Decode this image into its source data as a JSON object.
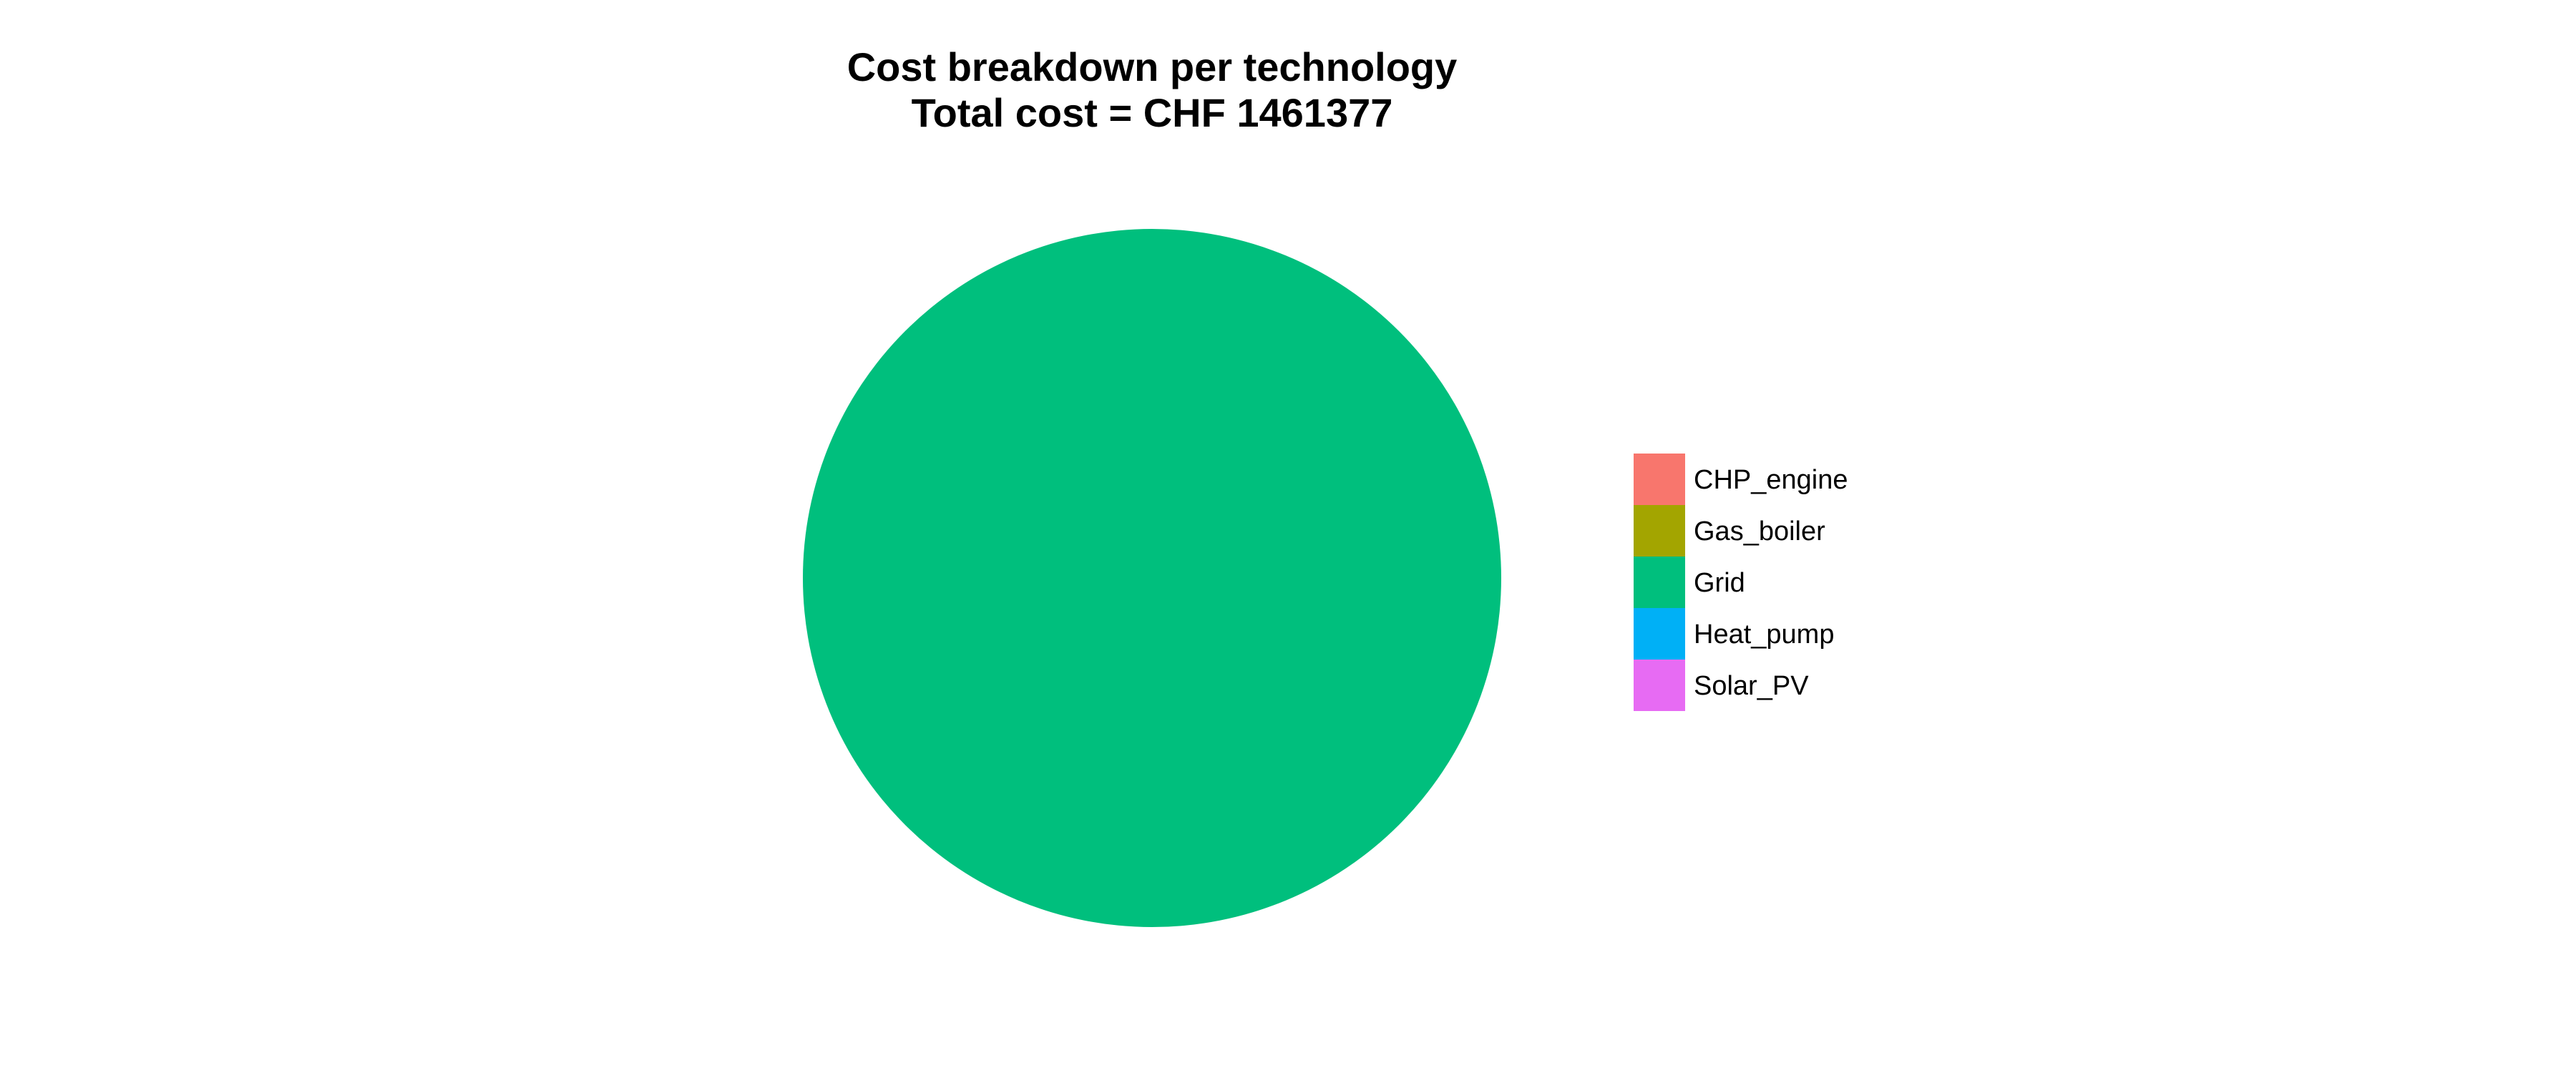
{
  "chart_data": {
    "type": "pie",
    "title": "Cost breakdown per technology",
    "subtitle": "Total cost = CHF  1461377",
    "categories": [
      "CHP_engine",
      "Gas_boiler",
      "Grid",
      "Heat_pump",
      "Solar_PV"
    ],
    "values": [
      0,
      0,
      1461377,
      0,
      0
    ],
    "colors": [
      "#F8766D",
      "#A3A500",
      "#00BF7D",
      "#00B0F6",
      "#E76BF3"
    ],
    "legend_position": "right"
  }
}
